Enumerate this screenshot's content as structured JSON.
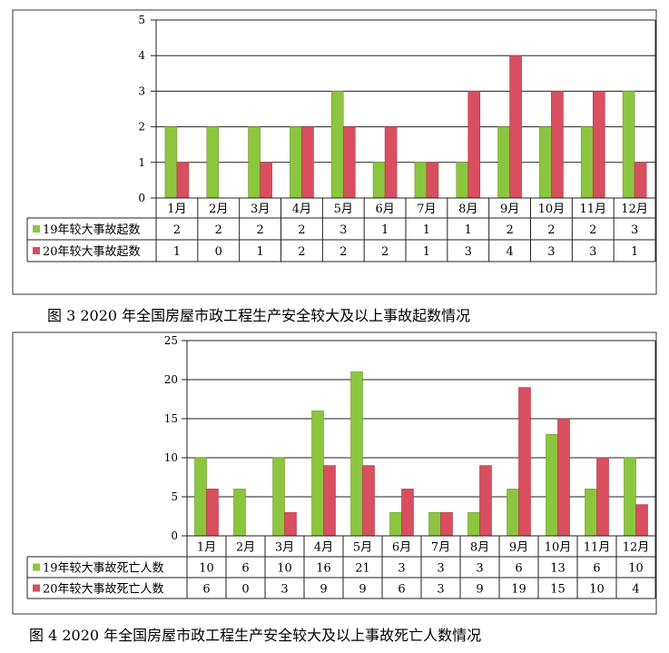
{
  "chart_data": [
    {
      "type": "bar",
      "categories": [
        "1月",
        "2月",
        "3月",
        "4月",
        "5月",
        "6月",
        "7月",
        "8月",
        "9月",
        "10月",
        "11月",
        "12月"
      ],
      "series": [
        {
          "name": "19年较大事故起数",
          "values": [
            2,
            2,
            2,
            2,
            3,
            1,
            1,
            1,
            2,
            2,
            2,
            3
          ],
          "color": "#8cc63f"
        },
        {
          "name": "20年较大事故起数",
          "values": [
            1,
            0,
            1,
            2,
            2,
            2,
            1,
            3,
            4,
            3,
            3,
            1
          ],
          "color": "#d94f5f"
        }
      ],
      "ylim": [
        0,
        5
      ],
      "yticks": [
        0,
        1,
        2,
        3,
        4,
        5
      ],
      "grid": true,
      "legend": "data-table",
      "caption": "图 3 2020 年全国房屋市政工程生产安全较大及以上事故起数情况"
    },
    {
      "type": "bar",
      "categories": [
        "1月",
        "2月",
        "3月",
        "4月",
        "5月",
        "6月",
        "7月",
        "8月",
        "9月",
        "10月",
        "11月",
        "12月"
      ],
      "series": [
        {
          "name": "19年较大事故死亡人数",
          "values": [
            10,
            6,
            10,
            16,
            21,
            3,
            3,
            3,
            6,
            13,
            6,
            10
          ],
          "color": "#8cc63f"
        },
        {
          "name": "20年较大事故死亡人数",
          "values": [
            6,
            0,
            3,
            9,
            9,
            6,
            3,
            9,
            19,
            15,
            10,
            4
          ],
          "color": "#d94f5f"
        }
      ],
      "ylim": [
        0,
        25
      ],
      "yticks": [
        0,
        5,
        10,
        15,
        20,
        25
      ],
      "grid": true,
      "legend": "data-table",
      "caption": "图 4 2020 年全国房屋市政工程生产安全较大及以上事故死亡人数情况"
    }
  ]
}
